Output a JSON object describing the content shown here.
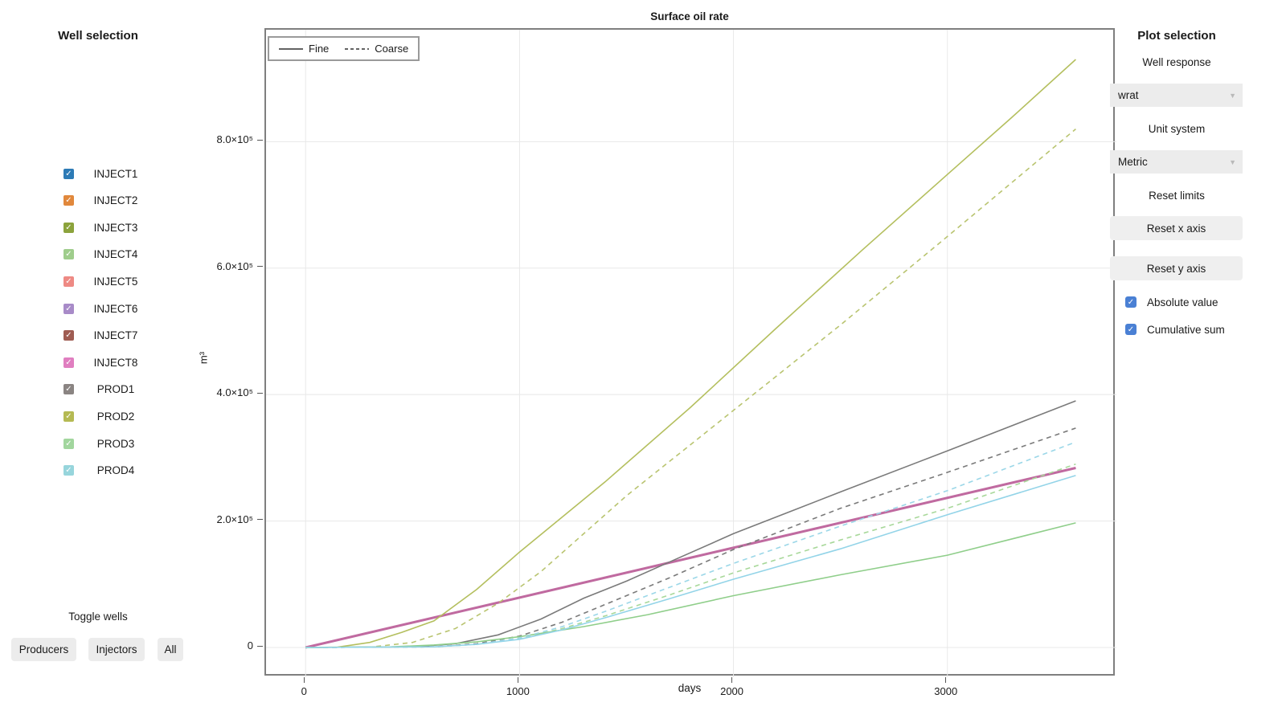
{
  "left_panel": {
    "title": "Well selection",
    "toggle_label": "Toggle wells",
    "wells": [
      {
        "label": "INJECT1",
        "color": "#2d7bb6",
        "checked": true
      },
      {
        "label": "INJECT2",
        "color": "#e1883c",
        "checked": true
      },
      {
        "label": "INJECT3",
        "color": "#8ca33c",
        "checked": true
      },
      {
        "label": "INJECT4",
        "color": "#9fcd8c",
        "checked": true
      },
      {
        "label": "INJECT5",
        "color": "#ee8a84",
        "checked": true
      },
      {
        "label": "INJECT6",
        "color": "#a88bc8",
        "checked": true
      },
      {
        "label": "INJECT7",
        "color": "#9f5c52",
        "checked": true
      },
      {
        "label": "INJECT8",
        "color": "#e07ec0",
        "checked": true
      },
      {
        "label": "PROD1",
        "color": "#8a8482",
        "checked": true
      },
      {
        "label": "PROD2",
        "color": "#b5ba53",
        "checked": true
      },
      {
        "label": "PROD3",
        "color": "#a2d69e",
        "checked": true
      },
      {
        "label": "PROD4",
        "color": "#97d5dc",
        "checked": true
      }
    ],
    "buttons": [
      {
        "label": "Producers"
      },
      {
        "label": "Injectors"
      },
      {
        "label": "All"
      }
    ]
  },
  "right_panel": {
    "title": "Plot selection",
    "well_response_label": "Well response",
    "well_response_value": "wrat",
    "unit_system_label": "Unit system",
    "unit_system_value": "Metric",
    "reset_limits_label": "Reset limits",
    "reset_x_button": "Reset x axis",
    "reset_y_button": "Reset y axis",
    "checkbox_color": "#4a80d4",
    "checkboxes": [
      {
        "label": "Absolute value",
        "checked": true
      },
      {
        "label": "Cumulative sum",
        "checked": true
      }
    ]
  },
  "chart_data": {
    "type": "line",
    "title": "Surface oil rate",
    "xlabel": "days",
    "ylabel": "m³",
    "grid": true,
    "xlim": [
      -185,
      3790
    ],
    "ylim": [
      -47000,
      977000
    ],
    "x_ticks": [
      {
        "value": 0,
        "label": "0"
      },
      {
        "value": 1000,
        "label": "1000"
      },
      {
        "value": 2000,
        "label": "2000"
      },
      {
        "value": 3000,
        "label": "3000"
      }
    ],
    "y_ticks": [
      {
        "value": 0,
        "label": "0"
      },
      {
        "value": 200000,
        "label": "2.0×10⁵"
      },
      {
        "value": 400000,
        "label": "4.0×10⁵"
      },
      {
        "value": 600000,
        "label": "6.0×10⁵"
      },
      {
        "value": 800000,
        "label": "8.0×10⁵"
      }
    ],
    "legend": {
      "position": "top-left",
      "entries": [
        {
          "label": "Fine",
          "style": "solid",
          "color": "#4d4d4d"
        },
        {
          "label": "Coarse",
          "style": "dashed",
          "color": "#4d4d4d"
        }
      ]
    },
    "series": [
      {
        "name": "INJECT1-8 (coarse, overlapping)",
        "color": "#c06aa0",
        "style": "dashed",
        "width": 2,
        "points": [
          [
            0,
            0
          ],
          [
            3600,
            284000
          ]
        ]
      },
      {
        "name": "INJECT1-8 (fine, overlapping)",
        "color": "#c06aa0",
        "style": "solid",
        "width": 3,
        "points": [
          [
            0,
            0
          ],
          [
            3600,
            284000
          ]
        ]
      },
      {
        "name": "PROD1 (coarse)",
        "color": "#7a7a7a",
        "style": "dashed",
        "width": 1.6,
        "points": [
          [
            0,
            0
          ],
          [
            600,
            1000
          ],
          [
            800,
            6000
          ],
          [
            1000,
            18000
          ],
          [
            1200,
            40000
          ],
          [
            1400,
            68000
          ],
          [
            1700,
            110000
          ],
          [
            2000,
            155000
          ],
          [
            2500,
            220000
          ],
          [
            3000,
            277000
          ],
          [
            3600,
            347000
          ]
        ]
      },
      {
        "name": "PROD1 (fine)",
        "color": "#7a7a7a",
        "style": "solid",
        "width": 1.6,
        "points": [
          [
            0,
            0
          ],
          [
            500,
            1000
          ],
          [
            700,
            6000
          ],
          [
            900,
            20000
          ],
          [
            1100,
            45000
          ],
          [
            1300,
            78000
          ],
          [
            1500,
            105000
          ],
          [
            1700,
            135000
          ],
          [
            2000,
            180000
          ],
          [
            2500,
            246000
          ],
          [
            3000,
            311000
          ],
          [
            3600,
            390000
          ]
        ]
      },
      {
        "name": "PROD2 (coarse)",
        "color": "#b9c470",
        "style": "dashed",
        "width": 1.6,
        "points": [
          [
            0,
            0
          ],
          [
            300,
            500
          ],
          [
            500,
            8000
          ],
          [
            700,
            30000
          ],
          [
            900,
            70000
          ],
          [
            1100,
            120000
          ],
          [
            1500,
            240000
          ],
          [
            2000,
            375000
          ],
          [
            2500,
            510000
          ],
          [
            3000,
            650000
          ],
          [
            3600,
            820000
          ]
        ]
      },
      {
        "name": "PROD2 (fine)",
        "color": "#b4bf5e",
        "style": "solid",
        "width": 1.6,
        "points": [
          [
            0,
            0
          ],
          [
            150,
            500
          ],
          [
            300,
            8000
          ],
          [
            450,
            24000
          ],
          [
            600,
            42000
          ],
          [
            800,
            92000
          ],
          [
            1000,
            151000
          ],
          [
            1400,
            262000
          ],
          [
            1800,
            380000
          ],
          [
            2200,
            505000
          ],
          [
            2600,
            628000
          ],
          [
            3000,
            748000
          ],
          [
            3300,
            838000
          ],
          [
            3600,
            930000
          ]
        ]
      },
      {
        "name": "PROD3 (coarse)",
        "color": "#a8d89a",
        "style": "dashed",
        "width": 1.6,
        "points": [
          [
            0,
            0
          ],
          [
            600,
            1000
          ],
          [
            800,
            5000
          ],
          [
            1000,
            14000
          ],
          [
            1200,
            30000
          ],
          [
            1400,
            50000
          ],
          [
            1700,
            83000
          ],
          [
            2000,
            118000
          ],
          [
            2500,
            170000
          ],
          [
            3000,
            220000
          ],
          [
            3600,
            290000
          ]
        ]
      },
      {
        "name": "PROD3 (fine)",
        "color": "#8fce8a",
        "style": "solid",
        "width": 1.6,
        "points": [
          [
            0,
            0
          ],
          [
            400,
            1000
          ],
          [
            600,
            4000
          ],
          [
            800,
            9000
          ],
          [
            1000,
            17000
          ],
          [
            1300,
            33000
          ],
          [
            1600,
            52000
          ],
          [
            2000,
            82000
          ],
          [
            2500,
            115000
          ],
          [
            3000,
            146000
          ],
          [
            3600,
            197000
          ]
        ]
      },
      {
        "name": "PROD4 (coarse)",
        "color": "#9bd7e8",
        "style": "dashed",
        "width": 1.6,
        "points": [
          [
            0,
            0
          ],
          [
            600,
            1000
          ],
          [
            800,
            5000
          ],
          [
            1000,
            15000
          ],
          [
            1200,
            33000
          ],
          [
            1400,
            57000
          ],
          [
            1700,
            95000
          ],
          [
            2000,
            133000
          ],
          [
            2500,
            192000
          ],
          [
            3000,
            248000
          ],
          [
            3600,
            325000
          ]
        ]
      },
      {
        "name": "PROD4 (fine)",
        "color": "#93d4e8",
        "style": "solid",
        "width": 1.6,
        "points": [
          [
            0,
            0
          ],
          [
            600,
            1000
          ],
          [
            800,
            5000
          ],
          [
            1000,
            13000
          ],
          [
            1200,
            28000
          ],
          [
            1400,
            47000
          ],
          [
            1700,
            77000
          ],
          [
            2000,
            108000
          ],
          [
            2500,
            156000
          ],
          [
            3000,
            210000
          ],
          [
            3600,
            272000
          ]
        ]
      }
    ]
  }
}
